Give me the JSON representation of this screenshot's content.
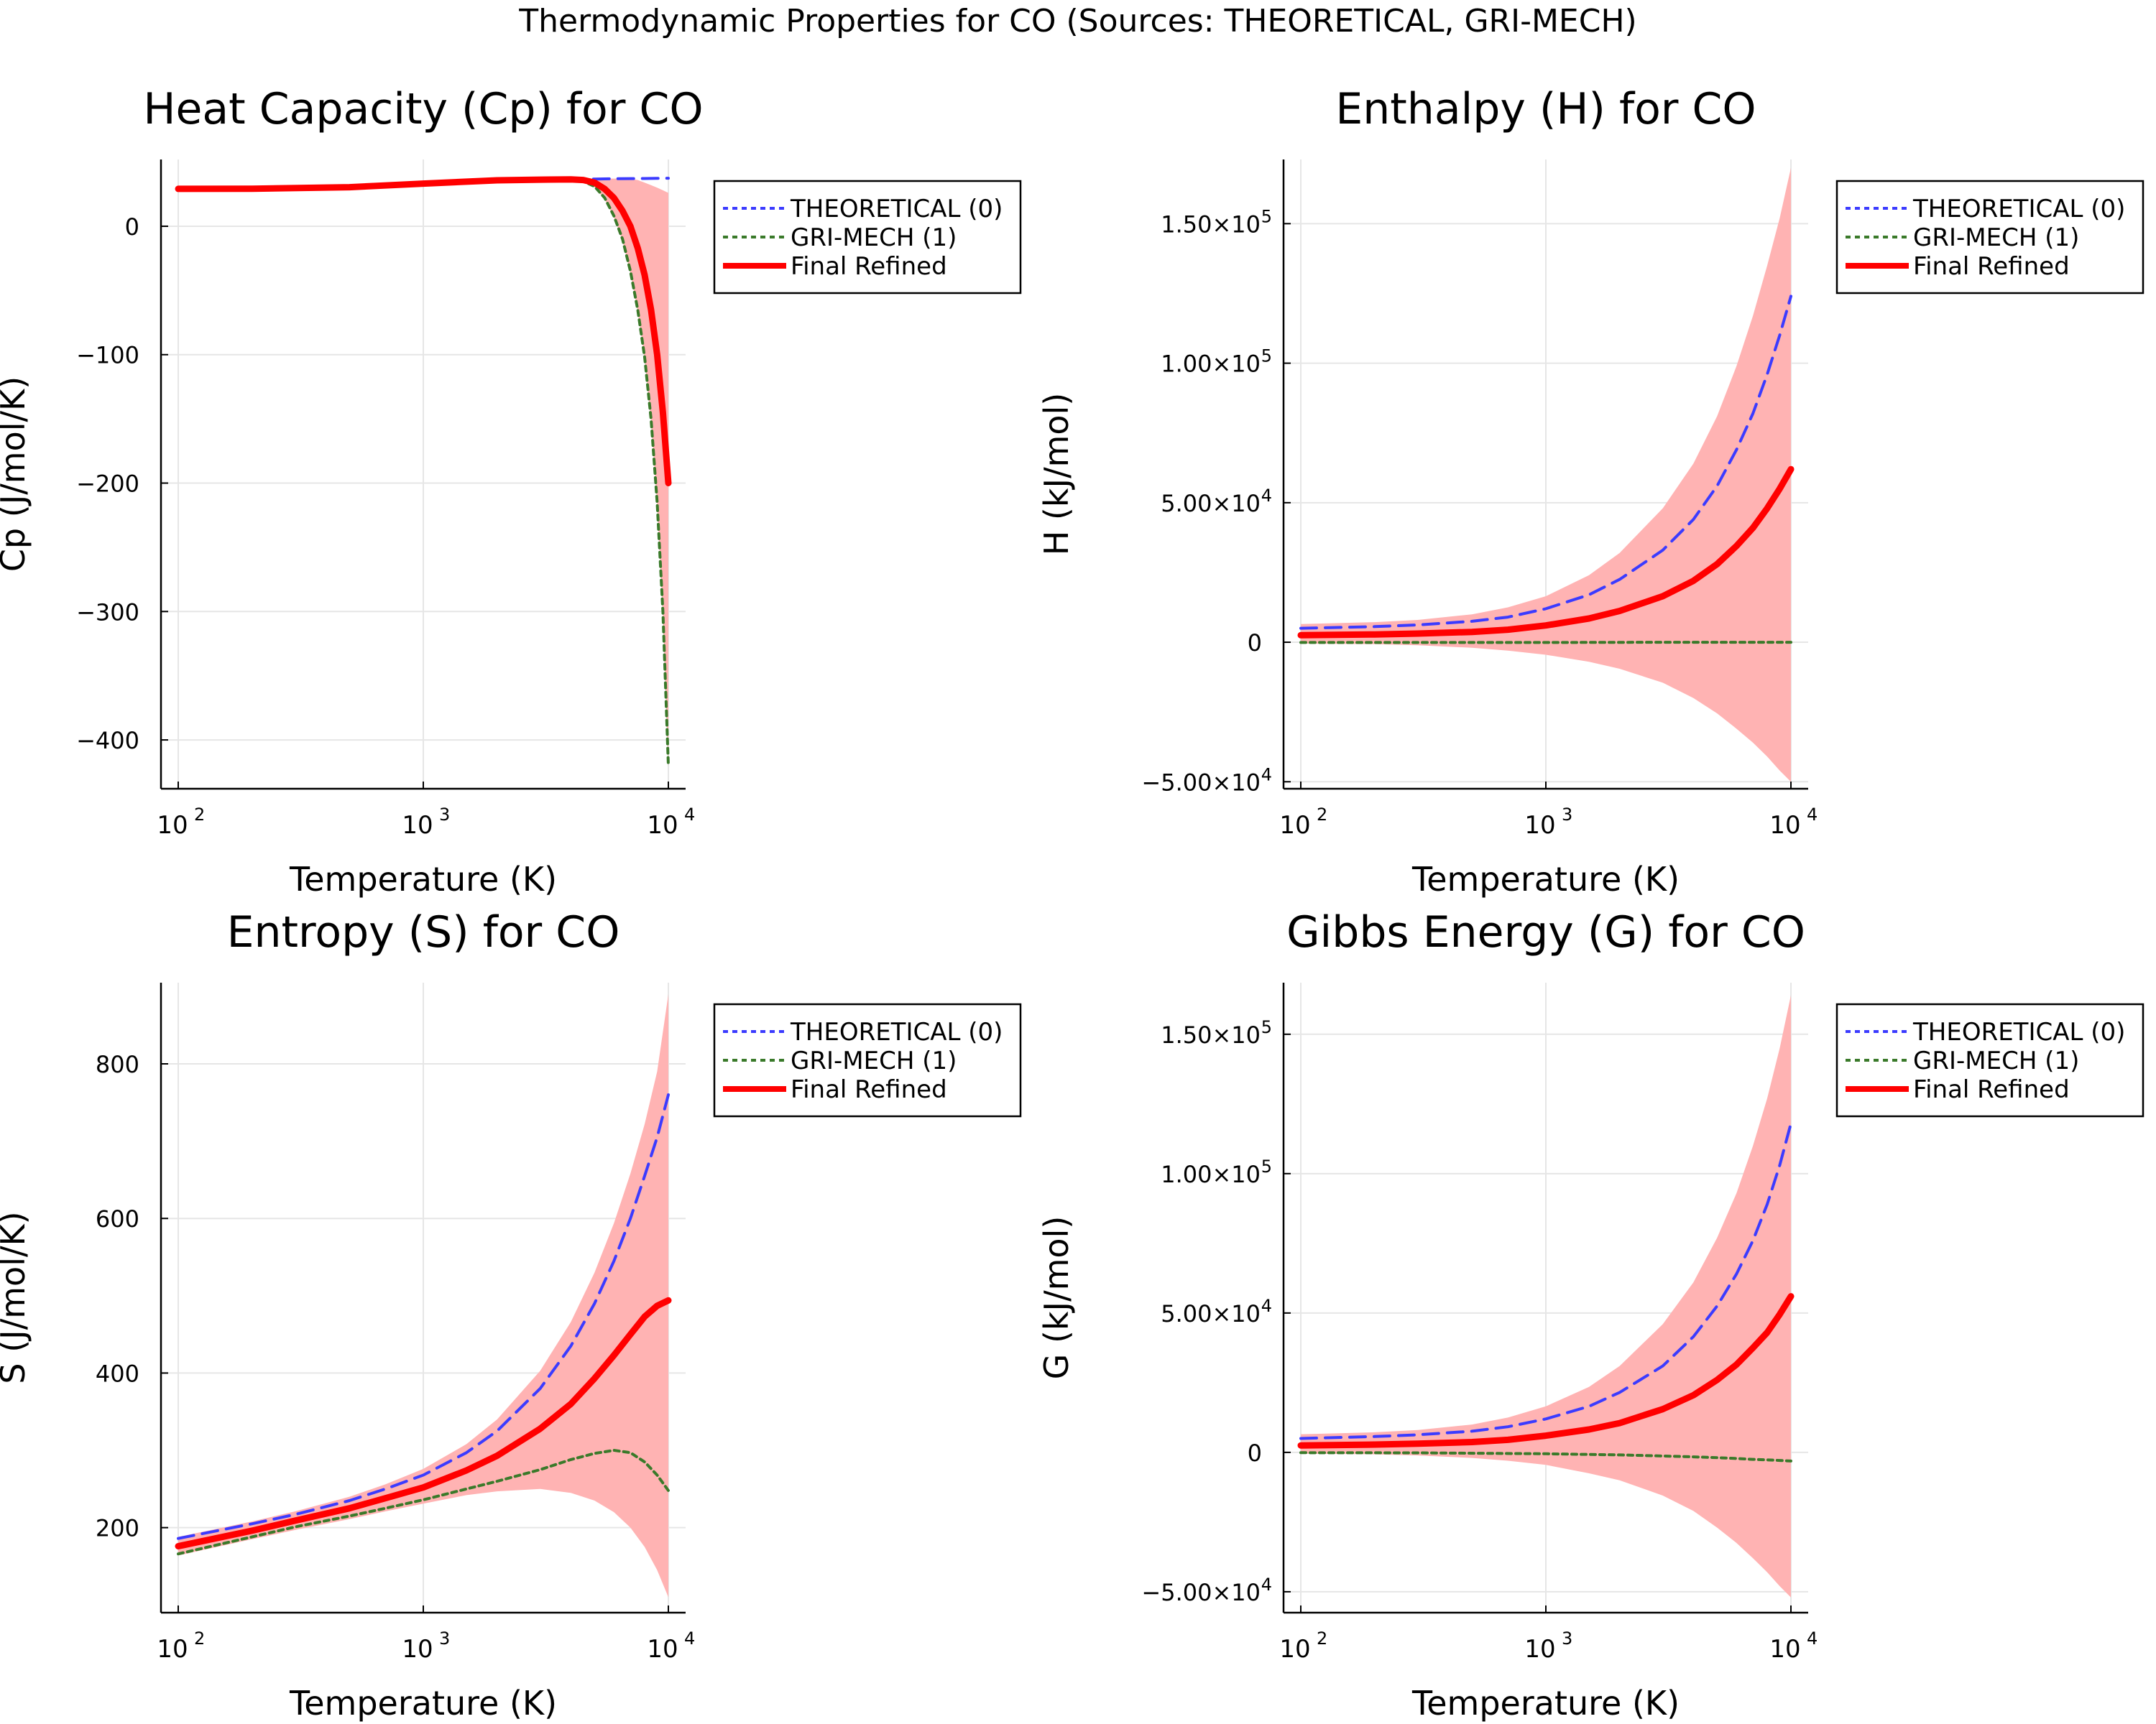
{
  "figure": {
    "suptitle": "Thermodynamic Properties for CO (Sources: THEORETICAL, GRI-MECH)"
  },
  "colors": {
    "theoretical": "#3b3bff",
    "grimech": "#3a7a2a",
    "final": "#ff0000",
    "band": "#ffb3b3",
    "grid": "#e6e6e6"
  },
  "chart_data": [
    {
      "id": "cp",
      "type": "line",
      "title": "Heat Capacity (Cp) for CO",
      "xlabel": "Temperature (K)",
      "ylabel": "Cp (J/mol/K)",
      "xscale": "log",
      "xlim": [
        100,
        10000
      ],
      "ylim": [
        -438,
        52
      ],
      "xticks": [
        {
          "v": 100,
          "base": "10",
          "exp": "2"
        },
        {
          "v": 1000,
          "base": "10",
          "exp": "3"
        },
        {
          "v": 10000,
          "base": "10",
          "exp": "4"
        }
      ],
      "yticks": [
        {
          "v": 0,
          "label": "0"
        },
        {
          "v": -100,
          "label": "−100"
        },
        {
          "v": -200,
          "label": "−200"
        },
        {
          "v": -300,
          "label": "−300"
        },
        {
          "v": -400,
          "label": "−400"
        }
      ],
      "legend": {
        "placement": "outside-top-right",
        "entries": [
          "THEORETICAL (0)",
          "GRI-MECH (1)",
          "Final Refined"
        ]
      },
      "series": [
        {
          "name": "THEORETICAL (0)",
          "style": "dash",
          "x": [
            100,
            200,
            500,
            1000,
            2000,
            3000,
            4000,
            5000,
            6000,
            7000,
            8000,
            9000,
            10000
          ],
          "y": [
            29.1,
            29.2,
            30.4,
            33.2,
            35.8,
            36.3,
            36.6,
            36.8,
            37.0,
            37.1,
            37.2,
            37.3,
            37.4
          ]
        },
        {
          "name": "GRI-MECH (1)",
          "style": "dot",
          "x": [
            100,
            200,
            500,
            1000,
            2000,
            3000,
            4000,
            4500,
            5000,
            5500,
            6000,
            6500,
            7000,
            7500,
            8000,
            8500,
            9000,
            9500,
            10000
          ],
          "y": [
            29.1,
            29.2,
            30.4,
            33.2,
            35.8,
            36.5,
            36.3,
            35.0,
            31.0,
            22.0,
            8.0,
            -10.0,
            -35.0,
            -65.0,
            -102.0,
            -150.0,
            -215.0,
            -300.0,
            -420.0
          ]
        },
        {
          "name": "Final Refined",
          "style": "solid",
          "x": [
            100,
            200,
            500,
            1000,
            2000,
            3000,
            4000,
            4500,
            5000,
            5500,
            6000,
            6500,
            7000,
            7500,
            8000,
            8500,
            9000,
            9500,
            10000
          ],
          "y": [
            29.1,
            29.2,
            30.4,
            33.2,
            35.8,
            36.3,
            36.5,
            36.0,
            34.0,
            29.0,
            22.0,
            12.0,
            0.0,
            -17.0,
            -38.0,
            -65.0,
            -100.0,
            -145.0,
            -200.0
          ]
        }
      ],
      "band": {
        "x": [
          100,
          200,
          500,
          1000,
          2000,
          3000,
          4000,
          4500,
          5000,
          5500,
          6000,
          6500,
          7000,
          7500,
          8000,
          8500,
          9000,
          9500,
          10000
        ],
        "upper": [
          29.3,
          29.5,
          30.6,
          33.4,
          36.0,
          36.6,
          36.8,
          36.9,
          37.0,
          37.0,
          37.1,
          37.0,
          37.0,
          36.0,
          34.0,
          32.0,
          30.0,
          28.0,
          26.0
        ],
        "lower": [
          28.9,
          28.9,
          30.2,
          33.0,
          35.6,
          36.1,
          36.0,
          34.8,
          30.5,
          21.0,
          7.0,
          -11.0,
          -36.0,
          -66.0,
          -103.0,
          -151.0,
          -216.0,
          -301.0,
          -421.0
        ]
      }
    },
    {
      "id": "h",
      "type": "line",
      "title": "Enthalpy (H) for CO",
      "xlabel": "Temperature (K)",
      "ylabel": "H (kJ/mol)",
      "xscale": "log",
      "xlim": [
        100,
        10000
      ],
      "ylim": [
        -52500,
        173000
      ],
      "xticks": [
        {
          "v": 100,
          "base": "10",
          "exp": "2"
        },
        {
          "v": 1000,
          "base": "10",
          "exp": "3"
        },
        {
          "v": 10000,
          "base": "10",
          "exp": "4"
        }
      ],
      "yticks": [
        {
          "v": 150000,
          "label": "1.50×10",
          "exp": "5"
        },
        {
          "v": 100000,
          "label": "1.00×10",
          "exp": "5"
        },
        {
          "v": 50000,
          "label": "5.00×10",
          "exp": "4"
        },
        {
          "v": 0,
          "label": "0",
          "exp": ""
        },
        {
          "v": -50000,
          "label": "−5.00×10",
          "exp": "4"
        }
      ],
      "legend": {
        "placement": "outside-top-right",
        "entries": [
          "THEORETICAL (0)",
          "GRI-MECH (1)",
          "Final Refined"
        ]
      },
      "series": [
        {
          "name": "THEORETICAL (0)",
          "style": "dash",
          "x": [
            100,
            200,
            300,
            500,
            700,
            1000,
            1500,
            2000,
            3000,
            4000,
            5000,
            6000,
            7000,
            8000,
            9000,
            10000
          ],
          "y": [
            5000,
            5600,
            6200,
            7500,
            9000,
            12000,
            17000,
            22500,
            33000,
            44000,
            56000,
            69000,
            82000,
            96000,
            110000,
            124000
          ]
        },
        {
          "name": "GRI-MECH (1)",
          "style": "dot",
          "x": [
            100,
            1000,
            3000,
            10000
          ],
          "y": [
            -100,
            -80,
            -20,
            0
          ]
        },
        {
          "name": "Final Refined",
          "style": "solid",
          "x": [
            100,
            200,
            300,
            500,
            700,
            1000,
            1500,
            2000,
            3000,
            4000,
            5000,
            6000,
            7000,
            8000,
            9000,
            10000
          ],
          "y": [
            2500,
            2800,
            3100,
            3700,
            4500,
            6000,
            8500,
            11200,
            16500,
            22000,
            28000,
            34500,
            41000,
            48000,
            55000,
            62000
          ]
        }
      ],
      "band": {
        "x": [
          100,
          200,
          300,
          500,
          700,
          1000,
          1500,
          2000,
          3000,
          4000,
          5000,
          6000,
          7000,
          8000,
          9000,
          10000
        ],
        "upper": [
          6500,
          7200,
          8000,
          10000,
          12500,
          16500,
          24000,
          32000,
          48000,
          64000,
          81000,
          99000,
          117000,
          135000,
          152000,
          170000
        ],
        "lower": [
          -500,
          -700,
          -1100,
          -2000,
          -3000,
          -4500,
          -7000,
          -9500,
          -14500,
          -20000,
          -25500,
          -31000,
          -36000,
          -41000,
          -46000,
          -50000
        ]
      }
    },
    {
      "id": "s",
      "type": "line",
      "title": "Entropy (S) for CO",
      "xlabel": "Temperature (K)",
      "ylabel": "S (J/mol/K)",
      "xscale": "log",
      "xlim": [
        100,
        10000
      ],
      "ylim": [
        90,
        905
      ],
      "xticks": [
        {
          "v": 100,
          "base": "10",
          "exp": "2"
        },
        {
          "v": 1000,
          "base": "10",
          "exp": "3"
        },
        {
          "v": 10000,
          "base": "10",
          "exp": "4"
        }
      ],
      "yticks": [
        {
          "v": 200,
          "label": "200"
        },
        {
          "v": 400,
          "label": "400"
        },
        {
          "v": 600,
          "label": "600"
        },
        {
          "v": 800,
          "label": "800"
        }
      ],
      "legend": {
        "placement": "outside-top-right",
        "entries": [
          "THEORETICAL (0)",
          "GRI-MECH (1)",
          "Final Refined"
        ]
      },
      "series": [
        {
          "name": "THEORETICAL (0)",
          "style": "dash",
          "x": [
            100,
            200,
            300,
            500,
            700,
            1000,
            1500,
            2000,
            3000,
            4000,
            5000,
            6000,
            7000,
            8000,
            9000,
            10000
          ],
          "y": [
            186,
            205,
            217,
            235,
            250,
            268,
            297,
            325,
            380,
            435,
            490,
            545,
            600,
            655,
            705,
            760
          ]
        },
        {
          "name": "GRI-MECH (1)",
          "style": "dot",
          "x": [
            100,
            200,
            300,
            500,
            700,
            1000,
            1500,
            2000,
            3000,
            4000,
            5000,
            6000,
            7000,
            8000,
            9000,
            10000
          ],
          "y": [
            166,
            188,
            201,
            215,
            225,
            236,
            250,
            260,
            275,
            288,
            296,
            300,
            297,
            285,
            268,
            248
          ]
        },
        {
          "name": "Final Refined",
          "style": "solid",
          "x": [
            100,
            200,
            300,
            500,
            700,
            1000,
            1500,
            2000,
            3000,
            4000,
            5000,
            6000,
            7000,
            8000,
            9000,
            10000
          ],
          "y": [
            176,
            196,
            209,
            225,
            238,
            252,
            274,
            293,
            328,
            360,
            393,
            423,
            450,
            473,
            487,
            494
          ]
        }
      ],
      "band": {
        "x": [
          100,
          200,
          300,
          500,
          700,
          1000,
          1500,
          2000,
          3000,
          4000,
          5000,
          6000,
          7000,
          8000,
          9000,
          10000
        ],
        "upper": [
          188,
          208,
          221,
          240,
          256,
          276,
          308,
          340,
          403,
          466,
          530,
          594,
          658,
          722,
          790,
          890
        ],
        "lower": [
          164,
          185,
          197,
          211,
          221,
          231,
          242,
          247,
          250,
          245,
          235,
          220,
          200,
          175,
          145,
          110
        ]
      }
    },
    {
      "id": "g",
      "type": "line",
      "title": "Gibbs Energy (G) for CO",
      "xlabel": "Temperature (K)",
      "ylabel": "G (kJ/mol)",
      "xscale": "log",
      "xlim": [
        100,
        10000
      ],
      "ylim": [
        -57500,
        168500
      ],
      "xticks": [
        {
          "v": 100,
          "base": "10",
          "exp": "2"
        },
        {
          "v": 1000,
          "base": "10",
          "exp": "3"
        },
        {
          "v": 10000,
          "base": "10",
          "exp": "4"
        }
      ],
      "yticks": [
        {
          "v": 150000,
          "label": "1.50×10",
          "exp": "5"
        },
        {
          "v": 100000,
          "label": "1.00×10",
          "exp": "5"
        },
        {
          "v": 50000,
          "label": "5.00×10",
          "exp": "4"
        },
        {
          "v": 0,
          "label": "0",
          "exp": ""
        },
        {
          "v": -50000,
          "label": "−5.00×10",
          "exp": "4"
        }
      ],
      "legend": {
        "placement": "outside-top-right",
        "entries": [
          "THEORETICAL (0)",
          "GRI-MECH (1)",
          "Final Refined"
        ]
      },
      "series": [
        {
          "name": "THEORETICAL (0)",
          "style": "dash",
          "x": [
            100,
            200,
            300,
            500,
            700,
            1000,
            1500,
            2000,
            3000,
            4000,
            5000,
            6000,
            7000,
            8000,
            9000,
            10000
          ],
          "y": [
            5000,
            5700,
            6300,
            7600,
            9200,
            12000,
            16500,
            21500,
            31000,
            41500,
            52500,
            64000,
            76000,
            89000,
            103000,
            118000
          ]
        },
        {
          "name": "GRI-MECH (1)",
          "style": "dot",
          "x": [
            100,
            300,
            1000,
            2000,
            3000,
            4000,
            5000,
            6000,
            7000,
            8000,
            9000,
            10000
          ],
          "y": [
            -100,
            -150,
            -500,
            -900,
            -1300,
            -1600,
            -1900,
            -2200,
            -2500,
            -2700,
            -2900,
            -3100
          ]
        },
        {
          "name": "Final Refined",
          "style": "solid",
          "x": [
            100,
            200,
            300,
            500,
            700,
            1000,
            1500,
            2000,
            3000,
            4000,
            5000,
            6000,
            7000,
            8000,
            9000,
            10000
          ],
          "y": [
            2500,
            2800,
            3100,
            3700,
            4500,
            6000,
            8200,
            10500,
            15500,
            20500,
            26000,
            31500,
            37500,
            43000,
            49500,
            56000
          ]
        }
      ],
      "band": {
        "x": [
          100,
          200,
          300,
          500,
          700,
          1000,
          1500,
          2000,
          3000,
          4000,
          5000,
          6000,
          7000,
          8000,
          9000,
          10000
        ],
        "upper": [
          6500,
          7200,
          8000,
          10000,
          12500,
          16500,
          23500,
          31000,
          46000,
          61000,
          77000,
          93000,
          110000,
          127000,
          145000,
          164000
        ],
        "lower": [
          -500,
          -700,
          -1100,
          -2000,
          -3000,
          -4500,
          -7500,
          -10000,
          -15500,
          -21000,
          -27000,
          -32500,
          -38000,
          -43000,
          -48000,
          -52000
        ]
      }
    }
  ]
}
